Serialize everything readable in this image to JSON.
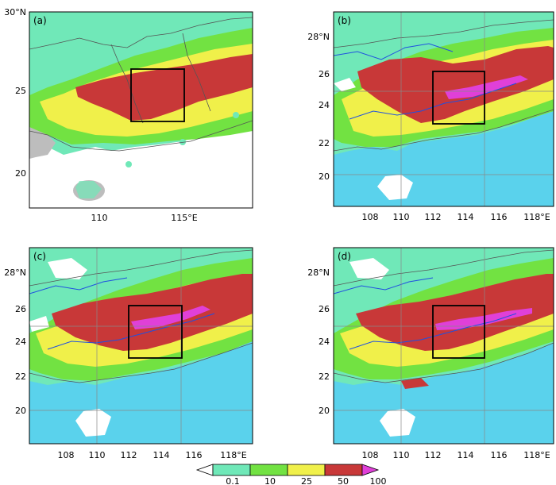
{
  "panels": [
    {
      "label": "(a)",
      "y_ticks": [
        "30°N",
        "25",
        "20"
      ],
      "x_ticks": [
        "110",
        "115°E"
      ],
      "ocean": "white"
    },
    {
      "label": "(b)",
      "y_ticks": [
        "28°N",
        "26",
        "24",
        "22",
        "20"
      ],
      "x_ticks": [
        "108",
        "110",
        "112",
        "114",
        "116",
        "118°E"
      ],
      "ocean": "cyan"
    },
    {
      "label": "(c)",
      "y_ticks": [
        "28°N",
        "26",
        "24",
        "22",
        "20"
      ],
      "x_ticks": [
        "108",
        "110",
        "112",
        "114",
        "116",
        "118°E"
      ],
      "ocean": "cyan"
    },
    {
      "label": "(d)",
      "y_ticks": [
        "28°N",
        "26",
        "24",
        "22",
        "20"
      ],
      "x_ticks": [
        "108",
        "110",
        "112",
        "114",
        "116",
        "118°E"
      ],
      "ocean": "cyan"
    }
  ],
  "colorbar": {
    "labels": [
      "0.1",
      "10",
      "25",
      "50",
      "100"
    ],
    "colors": [
      "#ffffff",
      "#6fe8b8",
      "#72e242",
      "#f0f04a",
      "#c83838",
      "#e040d8"
    ]
  },
  "colors": {
    "land_base": "#70e8b8",
    "green": "#72e242",
    "yellow": "#f0f04a",
    "red": "#c83838",
    "magenta": "#e040d8",
    "ocean": "#5ad2ec",
    "river": "#2050e0",
    "border": "#555555"
  }
}
